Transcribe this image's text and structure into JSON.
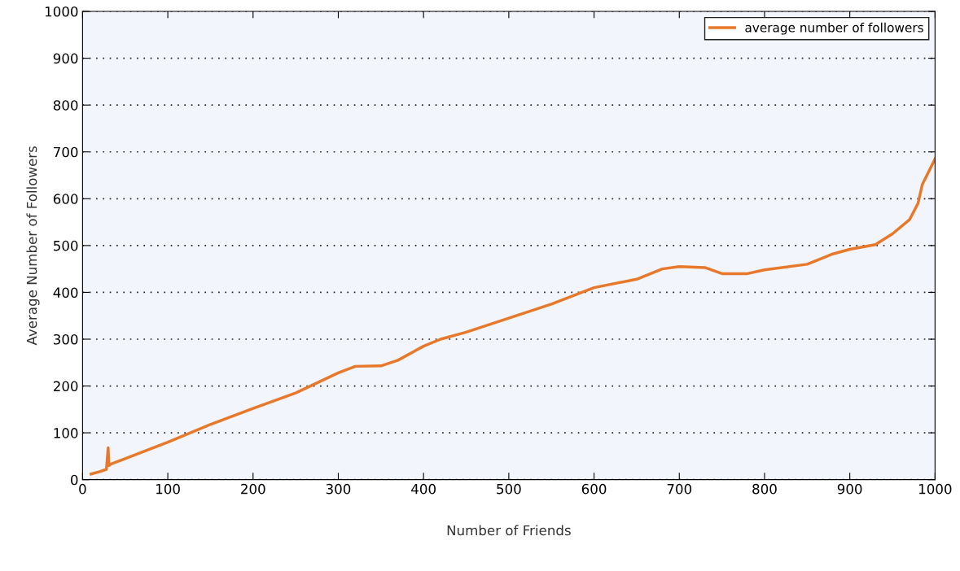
{
  "chart_data": {
    "type": "line",
    "xlabel": "Number of Friends",
    "ylabel": "Average Number of Followers",
    "xlim": [
      0,
      1000
    ],
    "xticks": [
      0,
      100,
      200,
      300,
      400,
      500,
      600,
      700,
      800,
      900,
      1000
    ],
    "ylim": [
      0,
      1000
    ],
    "yticks": [
      0,
      100,
      200,
      300,
      400,
      500,
      600,
      700,
      800,
      900,
      1000
    ],
    "grid": "y",
    "legend": "top right",
    "marker": "none",
    "line_style": "solid",
    "series": [
      {
        "name": "average number of followers",
        "color": "#e8782a",
        "x": [
          10,
          20,
          28,
          30,
          31,
          33,
          50,
          100,
          150,
          200,
          250,
          300,
          320,
          350,
          370,
          400,
          420,
          450,
          500,
          550,
          600,
          650,
          680,
          700,
          730,
          750,
          780,
          800,
          850,
          880,
          900,
          930,
          950,
          970,
          980,
          985,
          1000
        ],
        "values": [
          12,
          17,
          22,
          68,
          30,
          33,
          45,
          80,
          118,
          152,
          185,
          228,
          242,
          243,
          255,
          285,
          300,
          315,
          345,
          375,
          410,
          428,
          450,
          455,
          453,
          440,
          440,
          448,
          460,
          482,
          492,
          502,
          525,
          555,
          590,
          630,
          685
        ]
      }
    ]
  }
}
